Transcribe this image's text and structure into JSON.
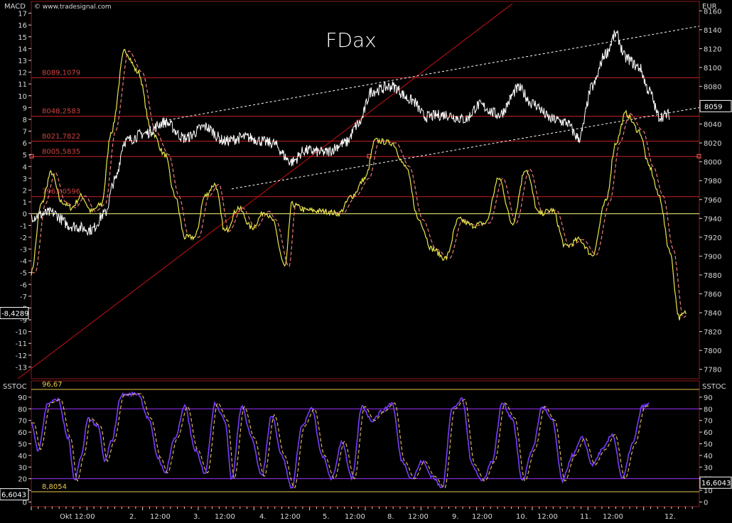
{
  "header": {
    "left_label": "MACD",
    "copyright": "© www.tradesignal.com",
    "right_label": "EUR"
  },
  "colors": {
    "background": "#000000",
    "frame": "#8a1c1c",
    "axis_text": "#d8d8d8",
    "price": "#ffffff",
    "macd": "#e8e84a",
    "signal_dashed": "#f07a7a",
    "level_line": "#cc2020",
    "level_label": "#d04040",
    "zero_line": "#ffff80",
    "trend_red": "#cc1010",
    "channel_dotted": "#ffffff",
    "stoch_k": "#7a3cff",
    "stoch_d": "#e8c84a",
    "stoch_level_high": "#e8c84a",
    "stoch_level_mid": "#9933ff",
    "marker": "#ff6060"
  },
  "chart_data": [
    {
      "type": "line",
      "title": "FDax",
      "panel": "price",
      "left_axis_label": "MACD",
      "right_axis_label": "EUR",
      "x_tick_labels": [
        "Okt 12:00",
        "2.",
        "12:00",
        "3.",
        "12:00",
        "4.",
        "12:00",
        "5.",
        "12:00",
        "8.",
        "12:00",
        "9.",
        "12:00",
        "10.",
        "12:00",
        "11.",
        "12:00",
        "12."
      ],
      "macd_ylim": [
        -14,
        18
      ],
      "macd_ticks": [
        17,
        16,
        15,
        14,
        13,
        12,
        11,
        10,
        9,
        8,
        7,
        6,
        5,
        4,
        3,
        2,
        1,
        0,
        -1,
        -2,
        -3,
        -4,
        -5,
        -6,
        -7,
        -8,
        -9,
        -10,
        -11,
        -12,
        -13
      ],
      "price_ylim": [
        7770,
        8170
      ],
      "price_ticks": [
        8160,
        8140,
        8120,
        8100,
        8080,
        8060,
        8040,
        8020,
        8000,
        7980,
        7960,
        7940,
        7920,
        7900,
        7880,
        7860,
        7840,
        7820,
        7800,
        7780
      ],
      "last_price_label": "8059",
      "last_price": 8059,
      "macd_last_label": "-8,4289",
      "macd_last": -8.4289,
      "levels": [
        {
          "label": "8089,1079",
          "value": 8089.1079
        },
        {
          "label": "8048,2583",
          "value": 8048.2583
        },
        {
          "label": "8021,7822",
          "value": 8021.7822
        },
        {
          "label": "8005,5835",
          "value": 8005.5835
        },
        {
          "label": "7963,0596",
          "value": 7963.0596
        }
      ],
      "price_series": {
        "name": "",
        "keypoints": [
          [
            0,
            7942
          ],
          [
            0.03,
            7946
          ],
          [
            0.06,
            7932
          ],
          [
            0.09,
            7928
          ],
          [
            0.11,
            7945
          ],
          [
            0.125,
            7980
          ],
          [
            0.14,
            8022
          ],
          [
            0.17,
            8030
          ],
          [
            0.2,
            8042
          ],
          [
            0.23,
            8025
          ],
          [
            0.26,
            8037
          ],
          [
            0.29,
            8022
          ],
          [
            0.32,
            8026
          ],
          [
            0.36,
            8020
          ],
          [
            0.39,
            8000
          ],
          [
            0.41,
            8012
          ],
          [
            0.44,
            8010
          ],
          [
            0.47,
            8020
          ],
          [
            0.49,
            8040
          ],
          [
            0.51,
            8075
          ],
          [
            0.54,
            8080
          ],
          [
            0.57,
            8065
          ],
          [
            0.59,
            8048
          ],
          [
            0.62,
            8050
          ],
          [
            0.65,
            8045
          ],
          [
            0.67,
            8060
          ],
          [
            0.7,
            8050
          ],
          [
            0.73,
            8078
          ],
          [
            0.75,
            8062
          ],
          [
            0.78,
            8045
          ],
          [
            0.8,
            8042
          ],
          [
            0.82,
            8025
          ],
          [
            0.84,
            8080
          ],
          [
            0.86,
            8115
          ],
          [
            0.875,
            8135
          ],
          [
            0.89,
            8110
          ],
          [
            0.91,
            8100
          ],
          [
            0.925,
            8075
          ],
          [
            0.94,
            8048
          ],
          [
            0.955,
            8050
          ]
        ]
      },
      "macd_series": {
        "name": "",
        "keypoints": [
          [
            0,
            -5
          ],
          [
            0.015,
            0.8
          ],
          [
            0.03,
            3.5
          ],
          [
            0.045,
            1
          ],
          [
            0.06,
            0.5
          ],
          [
            0.075,
            1.5
          ],
          [
            0.09,
            0.2
          ],
          [
            0.105,
            0.8
          ],
          [
            0.12,
            7
          ],
          [
            0.14,
            13.8
          ],
          [
            0.16,
            12
          ],
          [
            0.18,
            7
          ],
          [
            0.2,
            5
          ],
          [
            0.215,
            1.5
          ],
          [
            0.23,
            -2
          ],
          [
            0.245,
            -2
          ],
          [
            0.26,
            1.5
          ],
          [
            0.275,
            2.5
          ],
          [
            0.29,
            -1.5
          ],
          [
            0.31,
            0.5
          ],
          [
            0.33,
            -1.2
          ],
          [
            0.35,
            0.2
          ],
          [
            0.36,
            -0.5
          ],
          [
            0.38,
            -4.5
          ],
          [
            0.39,
            0.8
          ],
          [
            0.41,
            0.3
          ],
          [
            0.44,
            0.2
          ],
          [
            0.46,
            0
          ],
          [
            0.48,
            1.5
          ],
          [
            0.5,
            3
          ],
          [
            0.515,
            6.2
          ],
          [
            0.54,
            6
          ],
          [
            0.56,
            4
          ],
          [
            0.58,
            -0.5
          ],
          [
            0.6,
            -3
          ],
          [
            0.62,
            -3.8
          ],
          [
            0.64,
            -0.5
          ],
          [
            0.66,
            -1
          ],
          [
            0.68,
            -0.8
          ],
          [
            0.7,
            3
          ],
          [
            0.72,
            -0.8
          ],
          [
            0.74,
            3.8
          ],
          [
            0.76,
            0
          ],
          [
            0.78,
            0.3
          ],
          [
            0.8,
            -2.8
          ],
          [
            0.82,
            -2.2
          ],
          [
            0.84,
            -3.5
          ],
          [
            0.86,
            1
          ],
          [
            0.875,
            6
          ],
          [
            0.89,
            8.5
          ],
          [
            0.91,
            7
          ],
          [
            0.925,
            4
          ],
          [
            0.94,
            1.5
          ],
          [
            0.955,
            -3
          ],
          [
            0.97,
            -8.8
          ],
          [
            0.98,
            -8.4
          ]
        ]
      },
      "trendline_red": [
        [
          -0.02,
          -14
        ],
        [
          0.72,
          17.8
        ]
      ],
      "channel_upper": [
        [
          0.2,
          7.9
        ],
        [
          1.0,
          15.9
        ]
      ],
      "channel_lower": [
        [
          0.3,
          2.1
        ],
        [
          1.0,
          9
        ]
      ]
    },
    {
      "type": "line",
      "panel": "stochastic",
      "left_axis_label": "SSTOC",
      "right_axis_label": "SSTOC",
      "ylim": [
        -4,
        104
      ],
      "y_ticks": [
        90,
        80,
        70,
        60,
        50,
        40,
        30,
        20,
        10,
        0
      ],
      "levels": [
        {
          "label": "96,67",
          "value": 96.67
        },
        {
          "label": "8,8054",
          "value": 8.8054
        }
      ],
      "guide_levels": [
        80,
        20
      ],
      "left_value_label": "6,6043",
      "right_value_label": "16,6043",
      "k_series": {
        "name": "",
        "keypoints": [
          [
            0,
            68
          ],
          [
            0.01,
            45
          ],
          [
            0.025,
            85
          ],
          [
            0.04,
            88
          ],
          [
            0.055,
            55
          ],
          [
            0.065,
            18
          ],
          [
            0.075,
            40
          ],
          [
            0.085,
            72
          ],
          [
            0.1,
            65
          ],
          [
            0.11,
            35
          ],
          [
            0.12,
            52
          ],
          [
            0.135,
            92
          ],
          [
            0.16,
            93
          ],
          [
            0.175,
            72
          ],
          [
            0.19,
            38
          ],
          [
            0.2,
            25
          ],
          [
            0.215,
            55
          ],
          [
            0.23,
            82
          ],
          [
            0.245,
            45
          ],
          [
            0.26,
            25
          ],
          [
            0.275,
            85
          ],
          [
            0.29,
            70
          ],
          [
            0.3,
            20
          ],
          [
            0.315,
            82
          ],
          [
            0.33,
            55
          ],
          [
            0.345,
            22
          ],
          [
            0.36,
            75
          ],
          [
            0.375,
            40
          ],
          [
            0.39,
            12
          ],
          [
            0.405,
            65
          ],
          [
            0.42,
            80
          ],
          [
            0.435,
            40
          ],
          [
            0.45,
            20
          ],
          [
            0.465,
            52
          ],
          [
            0.48,
            20
          ],
          [
            0.495,
            82
          ],
          [
            0.51,
            70
          ],
          [
            0.525,
            78
          ],
          [
            0.54,
            85
          ],
          [
            0.555,
            35
          ],
          [
            0.57,
            20
          ],
          [
            0.585,
            35
          ],
          [
            0.6,
            22
          ],
          [
            0.615,
            12
          ],
          [
            0.63,
            80
          ],
          [
            0.645,
            88
          ],
          [
            0.66,
            32
          ],
          [
            0.675,
            18
          ],
          [
            0.69,
            35
          ],
          [
            0.705,
            85
          ],
          [
            0.72,
            72
          ],
          [
            0.735,
            18
          ],
          [
            0.75,
            45
          ],
          [
            0.765,
            82
          ],
          [
            0.78,
            70
          ],
          [
            0.795,
            18
          ],
          [
            0.81,
            40
          ],
          [
            0.825,
            55
          ],
          [
            0.84,
            32
          ],
          [
            0.855,
            45
          ],
          [
            0.87,
            58
          ],
          [
            0.885,
            20
          ],
          [
            0.9,
            50
          ],
          [
            0.915,
            82
          ],
          [
            0.93,
            85
          ],
          [
            0.945,
            68
          ],
          [
            0.96,
            82
          ],
          [
            0.975,
            20
          ],
          [
            0.99,
            45
          ],
          [
            1.0,
            60
          ]
        ]
      }
    }
  ]
}
